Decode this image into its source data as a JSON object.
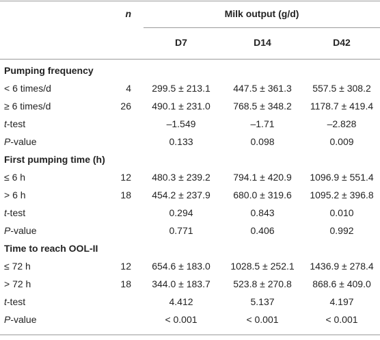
{
  "header": {
    "n_label": "n",
    "group": "Milk output (g/d)",
    "columns": [
      "D7",
      "D14",
      "D42"
    ]
  },
  "sections": [
    {
      "title": "Pumping frequency",
      "rows": [
        {
          "label": "< 6 times/d",
          "n": 4,
          "values": [
            "299.5 ± 213.1",
            "447.5 ± 361.3",
            "557.5 ± 308.2"
          ]
        },
        {
          "label": "≥ 6 times/d",
          "n": 26,
          "values": [
            "490.1 ± 231.0",
            "768.5 ± 348.2",
            "1178.7 ± 419.4"
          ]
        },
        {
          "label": "t-test",
          "values": [
            "–1.549",
            "–1.71",
            "–2.828"
          ]
        },
        {
          "label": "P-value",
          "values": [
            "0.133",
            "0.098",
            "0.009"
          ]
        }
      ]
    },
    {
      "title": "First pumping time (h)",
      "rows": [
        {
          "label": "≤ 6 h",
          "n": 12,
          "values": [
            "480.3 ± 239.2",
            "794.1 ± 420.9",
            "1096.9 ± 551.4"
          ]
        },
        {
          "label": "> 6 h",
          "n": 18,
          "values": [
            "454.2 ± 237.9",
            "680.0 ± 319.6",
            "1095.2 ± 396.8"
          ]
        },
        {
          "label": "t-test",
          "values": [
            "0.294",
            "0.843",
            "0.010"
          ]
        },
        {
          "label": "P-value",
          "values": [
            "0.771",
            "0.406",
            "0.992"
          ]
        }
      ]
    },
    {
      "title": "Time to reach OOL-II",
      "rows": [
        {
          "label": "≤ 72 h",
          "n": 12,
          "values": [
            "654.6 ± 183.0",
            "1028.5 ± 252.1",
            "1436.9 ± 278.4"
          ]
        },
        {
          "label": "> 72 h",
          "n": 18,
          "values": [
            "344.0 ± 183.7",
            "523.8 ± 270.8",
            "868.6 ± 409.0"
          ]
        },
        {
          "label": "t-test",
          "values": [
            "4.412",
            "5.137",
            "4.197"
          ]
        },
        {
          "label": "P-value",
          "values": [
            "< 0.001",
            "< 0.001",
            "< 0.001"
          ]
        }
      ]
    }
  ]
}
